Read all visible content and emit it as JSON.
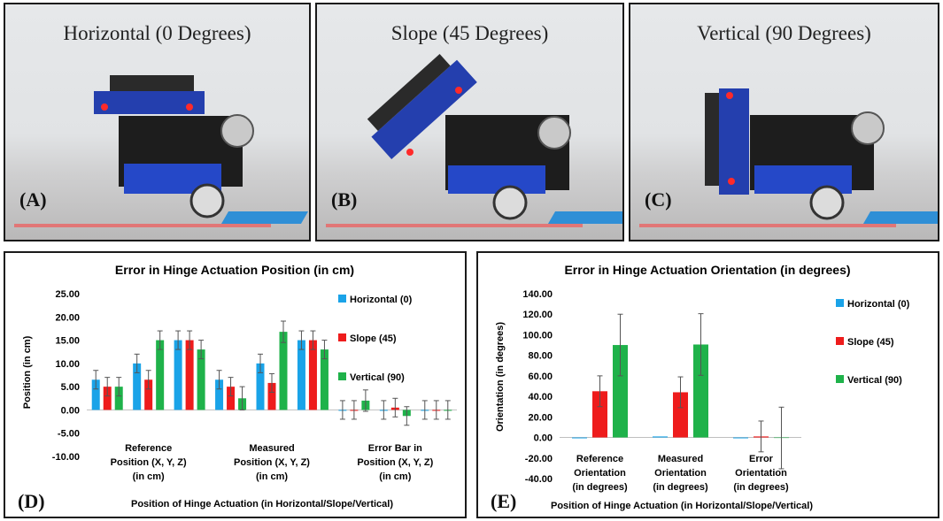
{
  "photos": [
    {
      "title": "Horizontal (0 Degrees)",
      "letter": "(A)"
    },
    {
      "title": "Slope (45 Degrees)",
      "letter": "(B)"
    },
    {
      "title": "Vertical (90 Degrees)",
      "letter": "(C)"
    }
  ],
  "colors": {
    "horizontal": "#1aa3e8",
    "slope": "#ee1c1c",
    "vertical": "#1fb24a"
  },
  "chart_data": [
    {
      "type": "bar",
      "letter": "(D)",
      "title": "Error in Hinge Actuation Position (in cm)",
      "ylabel": "Position (in cm)",
      "xlabel": "Position of Hinge Actuation (in Horizontal/Slope/Vertical)",
      "ylim": [
        -10,
        25
      ],
      "yticks": [
        "25.00",
        "20.00",
        "15.00",
        "10.00",
        "5.00",
        "0.00",
        "-5.00",
        "-10.00"
      ],
      "categories": [
        [
          "Reference",
          "Position (X, Y, Z)",
          "(in cm)"
        ],
        [
          "Measured",
          "Position (X, Y, Z)",
          "(in cm)"
        ],
        [
          "Error Bar in",
          "Position (X, Y, Z)",
          "(in cm)"
        ]
      ],
      "legend": [
        "Horizontal (0)",
        "Slope (45)",
        "Vertical (90)"
      ],
      "groups": [
        {
          "values": [
            6.5,
            5.0,
            5.0
          ],
          "errors": [
            2.0,
            2.0,
            2.0
          ]
        },
        {
          "values": [
            10.0,
            6.5,
            15.0
          ],
          "errors": [
            2.0,
            2.0,
            2.0
          ]
        },
        {
          "values": [
            15.0,
            15.0,
            13.0
          ],
          "errors": [
            2.0,
            2.0,
            2.0
          ]
        },
        {
          "values": [
            6.5,
            5.0,
            2.5
          ],
          "errors": [
            2.0,
            2.0,
            2.5
          ]
        },
        {
          "values": [
            10.0,
            5.8,
            16.8
          ],
          "errors": [
            2.0,
            2.0,
            2.3
          ]
        },
        {
          "values": [
            15.0,
            15.0,
            13.0
          ],
          "errors": [
            2.0,
            2.0,
            2.0
          ]
        },
        {
          "values": [
            0.0,
            0.0,
            2.0
          ],
          "errors": [
            2.0,
            2.0,
            2.3
          ]
        },
        {
          "values": [
            0.0,
            0.5,
            -1.3
          ],
          "errors": [
            2.0,
            2.0,
            2.0
          ]
        },
        {
          "values": [
            0.0,
            0.0,
            0.0
          ],
          "errors": [
            2.0,
            2.0,
            2.0
          ]
        }
      ]
    },
    {
      "type": "bar",
      "letter": "(E)",
      "title": "Error in Hinge Actuation Orientation (in degrees)",
      "ylabel": "Orientation (in degrees)",
      "xlabel": "Position of Hinge Actuation (in Horizontal/Slope/Vertical)",
      "ylim": [
        -40,
        140
      ],
      "yticks": [
        "140.00",
        "120.00",
        "100.00",
        "80.00",
        "60.00",
        "40.00",
        "20.00",
        "0.00",
        "-20.00",
        "-40.00"
      ],
      "categories": [
        [
          "Reference",
          "Orientation",
          "(in degrees)"
        ],
        [
          "Measured",
          "Orientation",
          "(in degrees)"
        ],
        [
          "Error",
          "Orientation",
          "(in degrees)"
        ]
      ],
      "legend": [
        "Horizontal (0)",
        "Slope (45)",
        "Vertical (90)"
      ],
      "groups": [
        {
          "values": [
            0.0,
            45.0,
            90.0
          ],
          "errors": [
            0,
            15.0,
            30.0
          ]
        },
        {
          "values": [
            1.0,
            44.0,
            90.5
          ],
          "errors": [
            0,
            15.0,
            30.0
          ]
        },
        {
          "values": [
            0.0,
            1.0,
            -0.5
          ],
          "errors": [
            0,
            15.0,
            30.0
          ]
        }
      ]
    }
  ]
}
